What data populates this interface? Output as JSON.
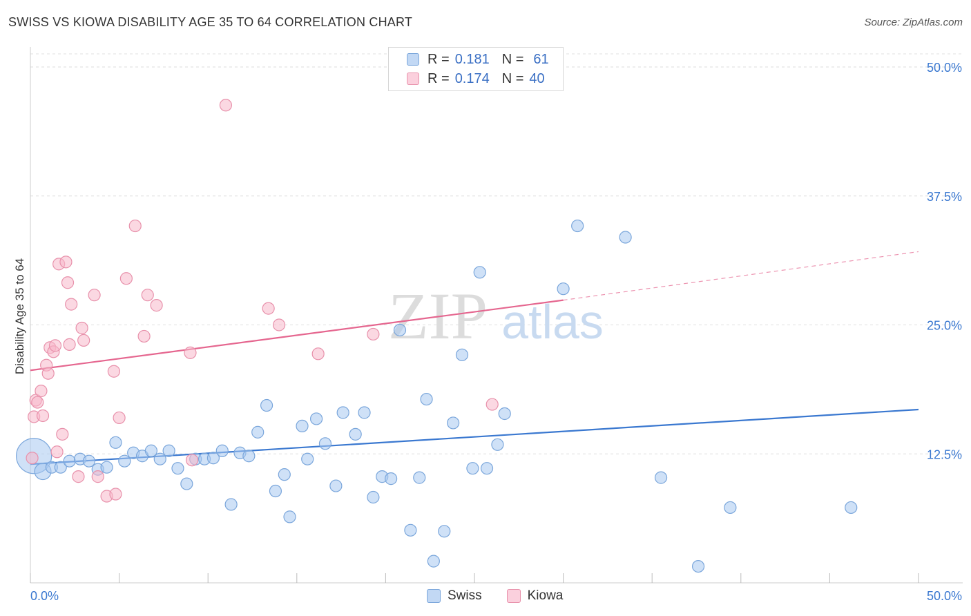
{
  "title": "SWISS VS KIOWA DISABILITY AGE 35 TO 64 CORRELATION CHART",
  "source": "Source: ZipAtlas.com",
  "watermark": {
    "zip": "ZIP",
    "atlas": "atlas"
  },
  "legend_top": {
    "rows": [
      {
        "r_label": "R =",
        "r_value": "0.181",
        "n_label": "N =",
        "n_value": "61",
        "color": "#a8c8f0",
        "border": "#7aa6db"
      },
      {
        "r_label": "R =",
        "r_value": "0.174",
        "n_label": "N =",
        "n_value": "40",
        "color": "#f7b8cb",
        "border": "#e891ab"
      }
    ]
  },
  "legend_bottom": [
    {
      "label": "Swiss",
      "color": "#a8c8f0",
      "border": "#7aa6db"
    },
    {
      "label": "Kiowa",
      "color": "#f7b8cb",
      "border": "#e891ab"
    }
  ],
  "chart_data": {
    "type": "scatter",
    "title": "SWISS VS KIOWA DISABILITY AGE 35 TO 64 CORRELATION CHART",
    "xlabel": "",
    "ylabel": "Disability Age 35 to 64",
    "xlim": [
      0,
      50
    ],
    "ylim": [
      0,
      52
    ],
    "x_tick_labels": [
      {
        "value": 0,
        "label": "0.0%"
      },
      {
        "value": 50,
        "label": "50.0%"
      }
    ],
    "y_tick_labels": [
      {
        "value": 12.5,
        "label": "12.5%"
      },
      {
        "value": 25,
        "label": "25.0%"
      },
      {
        "value": 37.5,
        "label": "37.5%"
      },
      {
        "value": 50,
        "label": "50.0%"
      }
    ],
    "grid": true,
    "series": [
      {
        "name": "Swiss",
        "color": "#a8c8f0",
        "stroke": "#7aa6db",
        "trend": {
          "x0": 0,
          "y0": 11.5,
          "x1": 50,
          "y1": 16.8,
          "color": "#3a78d0"
        },
        "points": [
          [
            0.2,
            12.3,
            3
          ],
          [
            0.7,
            10.8,
            1.4
          ],
          [
            1.2,
            11.2,
            1
          ],
          [
            1.7,
            11.2,
            1
          ],
          [
            2.2,
            11.8,
            1
          ],
          [
            2.8,
            12.0,
            1
          ],
          [
            3.3,
            11.8,
            1
          ],
          [
            3.8,
            11.0,
            1
          ],
          [
            4.3,
            11.2,
            1
          ],
          [
            4.8,
            13.6,
            1
          ],
          [
            5.3,
            11.8,
            1
          ],
          [
            5.8,
            12.6,
            1
          ],
          [
            6.3,
            12.3,
            1
          ],
          [
            6.8,
            12.8,
            1
          ],
          [
            7.3,
            12.0,
            1
          ],
          [
            7.8,
            12.8,
            1
          ],
          [
            8.3,
            11.1,
            1
          ],
          [
            8.8,
            9.6,
            1
          ],
          [
            9.3,
            12.0,
            1
          ],
          [
            9.8,
            12.0,
            1
          ],
          [
            10.3,
            12.1,
            1
          ],
          [
            10.8,
            12.8,
            1
          ],
          [
            11.3,
            7.6,
            1
          ],
          [
            11.8,
            12.6,
            1
          ],
          [
            12.3,
            12.3,
            1
          ],
          [
            12.8,
            14.6,
            1
          ],
          [
            13.3,
            17.2,
            1
          ],
          [
            13.8,
            8.9,
            1
          ],
          [
            14.3,
            10.5,
            1
          ],
          [
            14.6,
            6.4,
            1
          ],
          [
            15.3,
            15.2,
            1
          ],
          [
            15.6,
            12.0,
            1
          ],
          [
            16.1,
            15.9,
            1
          ],
          [
            16.6,
            13.5,
            1
          ],
          [
            17.2,
            9.4,
            1
          ],
          [
            17.6,
            16.5,
            1
          ],
          [
            18.3,
            14.4,
            1
          ],
          [
            18.8,
            16.5,
            1
          ],
          [
            19.3,
            8.3,
            1
          ],
          [
            19.8,
            10.3,
            1
          ],
          [
            20.3,
            10.1,
            1
          ],
          [
            20.8,
            24.5,
            1
          ],
          [
            21.4,
            5.1,
            1
          ],
          [
            21.9,
            10.2,
            1
          ],
          [
            22.3,
            17.8,
            1
          ],
          [
            22.7,
            2.1,
            1
          ],
          [
            23.3,
            5.0,
            1
          ],
          [
            23.8,
            15.5,
            1
          ],
          [
            24.3,
            22.1,
            1
          ],
          [
            24.9,
            11.1,
            1
          ],
          [
            25.3,
            30.1,
            1
          ],
          [
            25.7,
            11.1,
            1
          ],
          [
            26.3,
            13.4,
            1
          ],
          [
            26.7,
            16.4,
            1
          ],
          [
            30.0,
            28.5,
            1
          ],
          [
            30.8,
            34.6,
            1
          ],
          [
            33.5,
            33.5,
            1
          ],
          [
            35.5,
            10.2,
            1
          ],
          [
            37.6,
            1.6,
            1
          ],
          [
            39.4,
            7.3,
            1
          ],
          [
            46.2,
            7.3,
            1
          ]
        ]
      },
      {
        "name": "Kiowa",
        "color": "#f7b8cb",
        "stroke": "#e891ab",
        "trend": {
          "x0": 0,
          "y0": 20.6,
          "x1": 30.0,
          "y1": 27.4,
          "x2": 50,
          "y2": 32.1,
          "color": "#e5668f"
        },
        "points": [
          [
            0.1,
            12.1,
            1
          ],
          [
            0.2,
            16.1,
            1
          ],
          [
            0.3,
            17.7,
            1
          ],
          [
            0.4,
            17.5,
            1
          ],
          [
            0.6,
            18.6,
            1
          ],
          [
            0.7,
            16.2,
            1
          ],
          [
            0.9,
            21.1,
            1
          ],
          [
            1.0,
            20.3,
            1
          ],
          [
            1.1,
            22.8,
            1
          ],
          [
            1.3,
            22.4,
            1
          ],
          [
            1.4,
            23.0,
            1
          ],
          [
            1.5,
            12.7,
            1
          ],
          [
            1.6,
            30.9,
            1
          ],
          [
            1.8,
            14.4,
            1
          ],
          [
            2.0,
            31.1,
            1
          ],
          [
            2.1,
            29.1,
            1
          ],
          [
            2.2,
            23.1,
            1
          ],
          [
            2.3,
            27.0,
            1
          ],
          [
            2.7,
            10.3,
            1
          ],
          [
            2.9,
            24.7,
            1
          ],
          [
            3.0,
            23.5,
            1
          ],
          [
            3.6,
            27.9,
            1
          ],
          [
            3.8,
            10.3,
            1
          ],
          [
            4.3,
            8.4,
            1
          ],
          [
            4.7,
            20.5,
            1
          ],
          [
            4.8,
            8.6,
            1
          ],
          [
            5.0,
            16.0,
            1
          ],
          [
            5.4,
            29.5,
            1
          ],
          [
            5.9,
            34.6,
            1
          ],
          [
            6.4,
            23.9,
            1
          ],
          [
            6.6,
            27.9,
            1
          ],
          [
            7.1,
            26.9,
            1
          ],
          [
            9.0,
            22.3,
            1
          ],
          [
            9.1,
            11.9,
            1
          ],
          [
            11.0,
            46.3,
            1
          ],
          [
            13.4,
            26.6,
            1
          ],
          [
            14.0,
            25.0,
            1
          ],
          [
            16.2,
            22.2,
            1
          ],
          [
            19.3,
            24.1,
            1
          ],
          [
            26.0,
            17.3,
            1
          ]
        ]
      }
    ]
  }
}
